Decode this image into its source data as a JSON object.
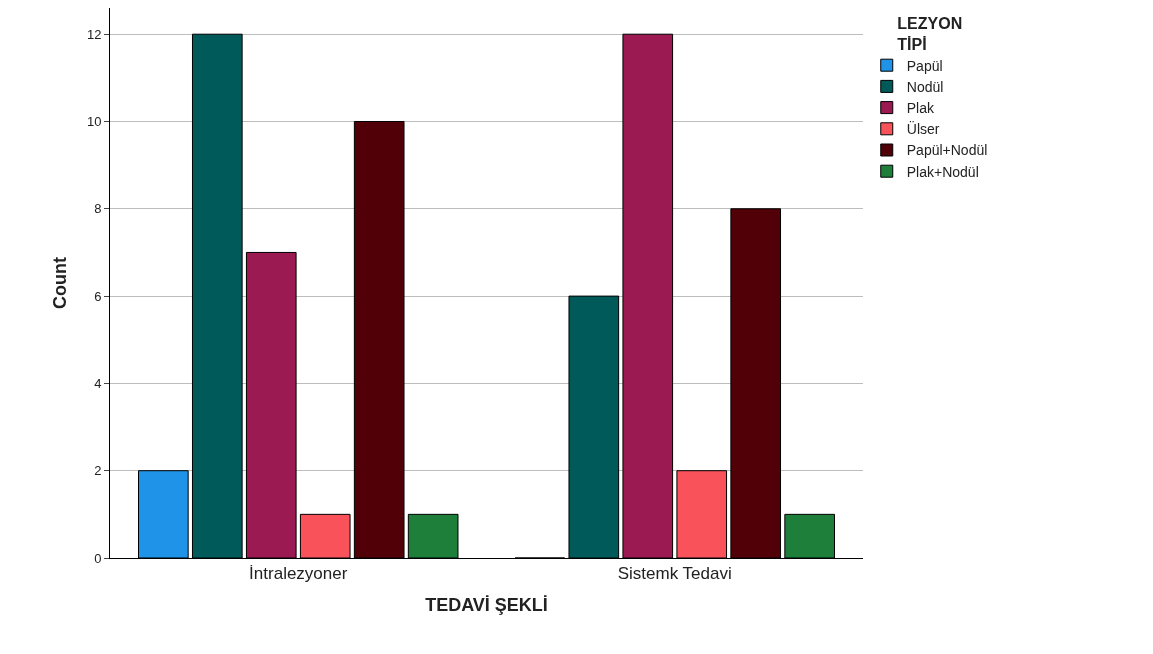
{
  "chart_data": {
    "type": "bar",
    "xlabel": "TEDAVİ ŞEKLİ",
    "ylabel": "Count",
    "legend_title": "LEZYON TİPİ",
    "categories": [
      "İntralezyoner",
      "Sistemk Tedavi"
    ],
    "series": [
      {
        "name": "Papül",
        "color": "#1f93e8",
        "values": [
          2,
          0
        ]
      },
      {
        "name": "Nodül",
        "color": "#015a5a",
        "values": [
          12,
          6
        ]
      },
      {
        "name": "Plak",
        "color": "#9c1a52",
        "values": [
          7,
          12
        ]
      },
      {
        "name": "Ülser",
        "color": "#f9525a",
        "values": [
          1,
          2
        ]
      },
      {
        "name": "Papül+Nodül",
        "color": "#520008",
        "values": [
          10,
          8
        ]
      },
      {
        "name": "Plak+Nodül",
        "color": "#1d7f3a",
        "values": [
          1,
          1
        ]
      }
    ],
    "ylim": [
      0,
      12.6
    ],
    "yticks": [
      0,
      2,
      4,
      6,
      8,
      10,
      12
    ],
    "grid": "y",
    "legend": "top right"
  }
}
